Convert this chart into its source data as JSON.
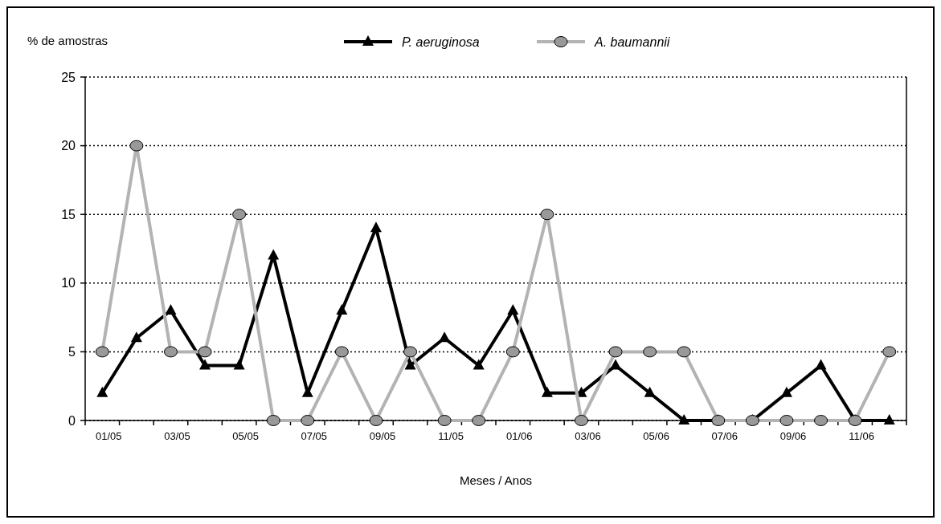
{
  "chart_data": {
    "type": "line",
    "xlabel": "Meses / Anos",
    "ylabel": "% de amostras",
    "categories": [
      "01/05",
      null,
      "03/05",
      null,
      "05/05",
      null,
      "07/05",
      null,
      "09/05",
      null,
      "11/05",
      null,
      "01/06",
      null,
      "03/06",
      null,
      "05/06",
      null,
      "07/06",
      null,
      "09/06",
      null,
      "11/06",
      null
    ],
    "series": [
      {
        "name": "P. aeruginosa",
        "color": "#000000",
        "marker": "triangle",
        "values": [
          2,
          6,
          8,
          4,
          4,
          12,
          2,
          8,
          14,
          4,
          6,
          4,
          8,
          2,
          2,
          4,
          2,
          0,
          0,
          0,
          2,
          4,
          0,
          0
        ]
      },
      {
        "name": "A. baumannii",
        "color": "#b3b3b3",
        "marker": "circle",
        "values": [
          5,
          20,
          5,
          5,
          15,
          0,
          0,
          5,
          0,
          5,
          0,
          0,
          5,
          15,
          0,
          5,
          5,
          5,
          0,
          0,
          0,
          0,
          0,
          5
        ]
      }
    ],
    "ylim": [
      0,
      25
    ],
    "yticks": [
      0,
      5,
      10,
      15,
      20,
      25
    ],
    "grid": "y",
    "legend": "top"
  }
}
